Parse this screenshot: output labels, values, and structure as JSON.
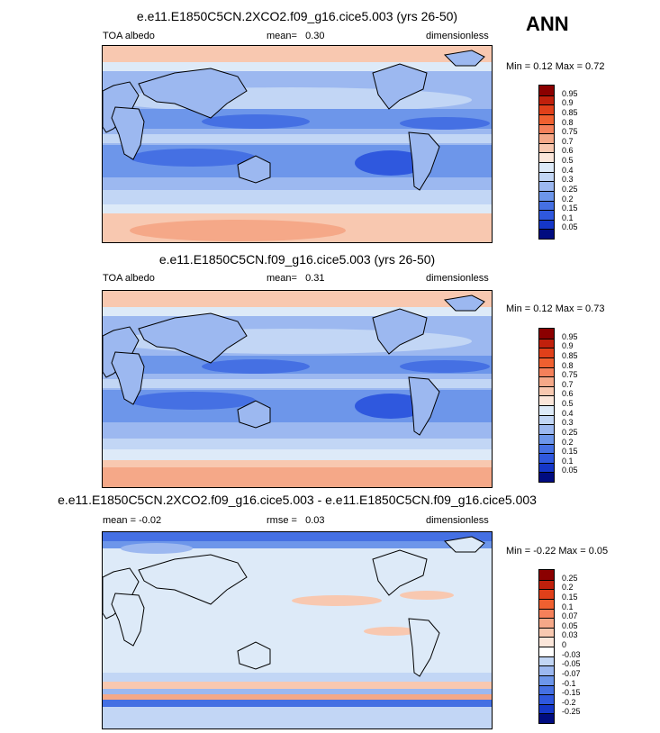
{
  "season": "ANN",
  "panels": [
    {
      "title": "e.e11.E1850C5CN.2XCO2.f09_g16.cice5.003 (yrs 26-50)",
      "left_label": "TOA albedo",
      "center_label": "mean=",
      "center_value": "0.30",
      "right_label": "dimensionless",
      "minmax": "Min =   0.12 Max =   0.72",
      "levels": [
        "0.95",
        "0.9",
        "0.85",
        "0.8",
        "0.75",
        "0.7",
        "0.6",
        "0.5",
        "0.4",
        "0.3",
        "0.25",
        "0.2",
        "0.15",
        "0.1",
        "0.05"
      ],
      "colors": [
        "#8b0000",
        "#c0200c",
        "#e0401a",
        "#f06030",
        "#f5805a",
        "#f5a888",
        "#f8c8b0",
        "#fbe6da",
        "#ddeaf8",
        "#c2d6f5",
        "#9cb8f0",
        "#6d96ea",
        "#4570e3",
        "#2f58de",
        "#1537c8",
        "#000c80"
      ]
    },
    {
      "title": "e.e11.E1850C5CN.f09_g16.cice5.003 (yrs 26-50)",
      "left_label": "TOA albedo",
      "center_label": "mean=",
      "center_value": "0.31",
      "right_label": "dimensionless",
      "minmax": "Min =   0.12 Max =   0.73",
      "levels": [
        "0.95",
        "0.9",
        "0.85",
        "0.8",
        "0.75",
        "0.7",
        "0.6",
        "0.5",
        "0.4",
        "0.3",
        "0.25",
        "0.2",
        "0.15",
        "0.1",
        "0.05"
      ],
      "colors": [
        "#8b0000",
        "#c0200c",
        "#e0401a",
        "#f06030",
        "#f5805a",
        "#f5a888",
        "#f8c8b0",
        "#fbe6da",
        "#ddeaf8",
        "#c2d6f5",
        "#9cb8f0",
        "#6d96ea",
        "#4570e3",
        "#2f58de",
        "#1537c8",
        "#000c80"
      ]
    },
    {
      "title": "e.e11.E1850C5CN.2XCO2.f09_g16.cice5.003 - e.e11.E1850C5CN.f09_g16.cice5.003",
      "left_label": "mean =",
      "left_value": "-0.02",
      "center_label": "rmse =",
      "center_value": "0.03",
      "right_label": "dimensionless",
      "minmax": "Min =  -0.22 Max =   0.05",
      "levels": [
        "0.25",
        "0.2",
        "0.15",
        "0.1",
        "0.07",
        "0.05",
        "0.03",
        "0",
        "-0.03",
        "-0.05",
        "-0.07",
        "-0.1",
        "-0.15",
        "-0.2",
        "-0.25"
      ],
      "colors": [
        "#8b0000",
        "#c0200c",
        "#e0401a",
        "#f06030",
        "#f5805a",
        "#f5a888",
        "#f8c8b0",
        "#fbe6da",
        "#ffffff",
        "#c2d6f5",
        "#9cb8f0",
        "#6d96ea",
        "#4570e3",
        "#2f58de",
        "#1537c8",
        "#000c80"
      ]
    }
  ]
}
